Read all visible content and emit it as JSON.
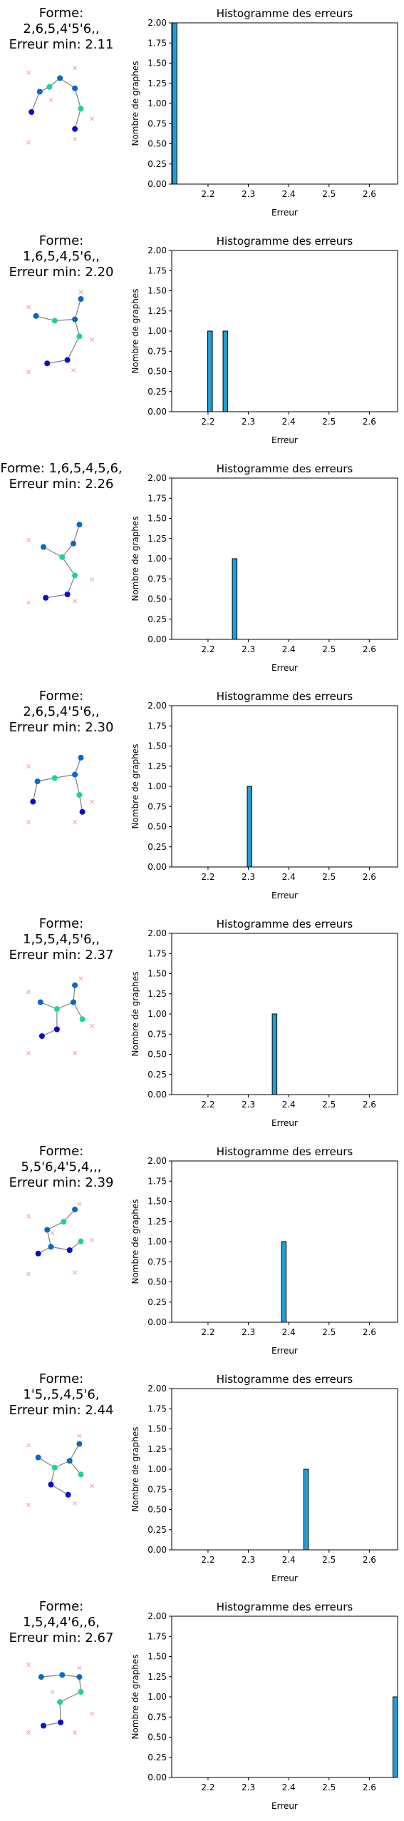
{
  "colors": {
    "bar": "#1f9fd6",
    "bar_edge": "#000000",
    "edge": "#808080",
    "cross": "#f4a0a0"
  },
  "chart_data": [
    {
      "type": "bar",
      "title": "Histogramme des erreurs",
      "xlabel": "Erreur",
      "ylabel": "Nombre de graphes",
      "xlim": [
        2.11,
        2.67
      ],
      "ylim": [
        0,
        2
      ],
      "xticks": [
        "2.2",
        "2.3",
        "2.4",
        "2.5",
        "2.6"
      ],
      "yticks": [
        "0.00",
        "0.25",
        "0.50",
        "0.75",
        "1.00",
        "1.25",
        "1.50",
        "1.75",
        "2.00"
      ],
      "bars": [
        {
          "x": 2.117,
          "value": 2
        }
      ],
      "forme": "Forme: 2,6,5,4'5'6,,",
      "erreur": "Erreur min: 2.11",
      "graph": {
        "nodes": [
          [
            0.42,
            0.1,
            "#0b67c8"
          ],
          [
            0.62,
            0.25,
            "#0b67c8"
          ],
          [
            0.15,
            0.3,
            "#0b67c8"
          ],
          [
            0.28,
            0.23,
            "#1fd1a0"
          ],
          [
            0.7,
            0.55,
            "#1fd1a0"
          ],
          [
            0.04,
            0.6,
            "#0b0bd8"
          ],
          [
            0.62,
            0.85,
            "#0b0bd8"
          ]
        ],
        "edges": [
          [
            0,
            1
          ],
          [
            0,
            3
          ],
          [
            3,
            2
          ],
          [
            2,
            5
          ],
          [
            1,
            4
          ],
          [
            4,
            6
          ]
        ],
        "crosses": [
          [
            0.62,
            -0.05
          ],
          [
            0.0,
            0.02
          ],
          [
            0.3,
            0.42
          ],
          [
            0.85,
            0.7
          ],
          [
            0.62,
            1.0
          ],
          [
            0.0,
            1.05
          ]
        ]
      }
    },
    {
      "type": "bar",
      "title": "Histogramme des erreurs",
      "xlabel": "Erreur",
      "ylabel": "Nombre de graphes",
      "xlim": [
        2.11,
        2.67
      ],
      "ylim": [
        0,
        2
      ],
      "xticks": [
        "2.2",
        "2.3",
        "2.4",
        "2.5",
        "2.6"
      ],
      "yticks": [
        "0.00",
        "0.25",
        "0.50",
        "0.75",
        "1.00",
        "1.25",
        "1.50",
        "1.75",
        "2.00"
      ],
      "bars": [
        {
          "x": 2.205,
          "value": 1
        },
        {
          "x": 2.243,
          "value": 1
        }
      ],
      "forme": "Forme: 1,6,5,4,5'6,,",
      "erreur": "Erreur min: 2.20",
      "graph": {
        "nodes": [
          [
            0.7,
            0.0,
            "#0b67c8"
          ],
          [
            0.1,
            0.25,
            "#0b67c8"
          ],
          [
            0.35,
            0.32,
            "#1fd1a0"
          ],
          [
            0.62,
            0.3,
            "#0b67c8"
          ],
          [
            0.68,
            0.55,
            "#1fd1a0"
          ],
          [
            0.52,
            0.9,
            "#0b0bd8"
          ],
          [
            0.25,
            0.95,
            "#0b0bd8"
          ]
        ],
        "edges": [
          [
            0,
            3
          ],
          [
            1,
            2
          ],
          [
            2,
            3
          ],
          [
            3,
            4
          ],
          [
            4,
            5
          ],
          [
            5,
            6
          ]
        ],
        "crosses": [
          [
            0.7,
            -0.1
          ],
          [
            0.0,
            0.12
          ],
          [
            0.85,
            0.6
          ],
          [
            0.6,
            1.05
          ],
          [
            0.0,
            1.08
          ]
        ]
      }
    },
    {
      "type": "bar",
      "title": "Histogramme des erreurs",
      "xlabel": "Erreur",
      "ylabel": "Nombre de graphes",
      "xlim": [
        2.11,
        2.67
      ],
      "ylim": [
        0,
        2
      ],
      "xticks": [
        "2.2",
        "2.3",
        "2.4",
        "2.5",
        "2.6"
      ],
      "yticks": [
        "0.00",
        "0.25",
        "0.50",
        "0.75",
        "1.00",
        "1.25",
        "1.50",
        "1.75",
        "2.00"
      ],
      "bars": [
        {
          "x": 2.266,
          "value": 1
        }
      ],
      "forme": "Forme: 1,6,5,4,5,6,",
      "erreur": "Erreur min: 2.26",
      "graph": {
        "nodes": [
          [
            0.68,
            -0.03,
            "#0b67c8"
          ],
          [
            0.6,
            0.25,
            "#0b67c8"
          ],
          [
            0.2,
            0.3,
            "#0b67c8"
          ],
          [
            0.45,
            0.45,
            "#1fd1a0"
          ],
          [
            0.62,
            0.72,
            "#1fd1a0"
          ],
          [
            0.52,
            1.0,
            "#0b0bd8"
          ],
          [
            0.23,
            1.05,
            "#0b0bd8"
          ]
        ],
        "edges": [
          [
            0,
            1
          ],
          [
            1,
            3
          ],
          [
            2,
            3
          ],
          [
            3,
            4
          ],
          [
            4,
            5
          ],
          [
            5,
            6
          ]
        ],
        "crosses": [
          [
            0.0,
            0.2
          ],
          [
            0.85,
            0.78
          ],
          [
            0.62,
            1.1
          ],
          [
            0.0,
            1.12
          ]
        ]
      }
    },
    {
      "type": "bar",
      "title": "Histogramme des erreurs",
      "xlabel": "Erreur",
      "ylabel": "Nombre de graphes",
      "xlim": [
        2.11,
        2.67
      ],
      "ylim": [
        0,
        2
      ],
      "xticks": [
        "2.2",
        "2.3",
        "2.4",
        "2.5",
        "2.6"
      ],
      "yticks": [
        "0.00",
        "0.25",
        "0.50",
        "0.75",
        "1.00",
        "1.25",
        "1.50",
        "1.75",
        "2.00"
      ],
      "bars": [
        {
          "x": 2.303,
          "value": 1
        }
      ],
      "forme": "Forme: 2,6,5,4'5'6,,",
      "erreur": "Erreur min: 2.30",
      "graph": {
        "nodes": [
          [
            0.7,
            0.05,
            "#0b67c8"
          ],
          [
            0.62,
            0.3,
            "#0b67c8"
          ],
          [
            0.35,
            0.35,
            "#1fd1a0"
          ],
          [
            0.12,
            0.4,
            "#0b67c8"
          ],
          [
            0.68,
            0.6,
            "#1fd1a0"
          ],
          [
            0.06,
            0.7,
            "#0b0bd8"
          ],
          [
            0.72,
            0.85,
            "#0b0bd8"
          ]
        ],
        "edges": [
          [
            0,
            1
          ],
          [
            1,
            2
          ],
          [
            2,
            3
          ],
          [
            3,
            5
          ],
          [
            1,
            4
          ],
          [
            4,
            6
          ]
        ],
        "crosses": [
          [
            0.0,
            0.18
          ],
          [
            0.85,
            0.7
          ],
          [
            0.62,
            1.0
          ],
          [
            0.0,
            1.0
          ]
        ]
      }
    },
    {
      "type": "bar",
      "title": "Histogramme des erreurs",
      "xlabel": "Erreur",
      "ylabel": "Nombre de graphes",
      "xlim": [
        2.11,
        2.67
      ],
      "ylim": [
        0,
        2
      ],
      "xticks": [
        "2.2",
        "2.3",
        "2.4",
        "2.5",
        "2.6"
      ],
      "yticks": [
        "0.00",
        "0.25",
        "0.50",
        "0.75",
        "1.00",
        "1.25",
        "1.50",
        "1.75",
        "2.00"
      ],
      "bars": [
        {
          "x": 2.365,
          "value": 1
        }
      ],
      "forme": "Forme: 1,5,5,4,5'6,,",
      "erreur": "Erreur min: 2.37",
      "graph": {
        "nodes": [
          [
            0.62,
            0.05,
            "#0b67c8"
          ],
          [
            0.16,
            0.3,
            "#0b67c8"
          ],
          [
            0.6,
            0.3,
            "#0b67c8"
          ],
          [
            0.38,
            0.4,
            "#1fd1a0"
          ],
          [
            0.72,
            0.55,
            "#1fd1a0"
          ],
          [
            0.38,
            0.7,
            "#0b0bd8"
          ],
          [
            0.18,
            0.8,
            "#0b0bd8"
          ]
        ],
        "edges": [
          [
            0,
            2
          ],
          [
            1,
            3
          ],
          [
            3,
            2
          ],
          [
            2,
            4
          ],
          [
            3,
            5
          ],
          [
            5,
            6
          ]
        ],
        "crosses": [
          [
            0.7,
            -0.05
          ],
          [
            0.0,
            0.15
          ],
          [
            0.85,
            0.65
          ],
          [
            0.62,
            1.05
          ],
          [
            0.0,
            1.05
          ]
        ]
      }
    },
    {
      "type": "bar",
      "title": "Histogramme des erreurs",
      "xlabel": "Erreur",
      "ylabel": "Nombre de graphes",
      "xlim": [
        2.11,
        2.67
      ],
      "ylim": [
        0,
        2
      ],
      "xticks": [
        "2.2",
        "2.3",
        "2.4",
        "2.5",
        "2.6"
      ],
      "yticks": [
        "0.00",
        "0.25",
        "0.50",
        "0.75",
        "1.00",
        "1.25",
        "1.50",
        "1.75",
        "2.00"
      ],
      "bars": [
        {
          "x": 2.388,
          "value": 1
        }
      ],
      "forme": "Forme: 5,5'6,4'5,4,,,",
      "erreur": "Erreur min: 2.39",
      "graph": {
        "nodes": [
          [
            0.62,
            0.0,
            "#0b67c8"
          ],
          [
            0.47,
            0.18,
            "#1fd1a0"
          ],
          [
            0.25,
            0.3,
            "#0b67c8"
          ],
          [
            0.3,
            0.55,
            "#0b67c8"
          ],
          [
            0.7,
            0.47,
            "#1fd1a0"
          ],
          [
            0.55,
            0.6,
            "#0b0bd8"
          ],
          [
            0.13,
            0.65,
            "#0b0bd8"
          ]
        ],
        "edges": [
          [
            0,
            1
          ],
          [
            1,
            2
          ],
          [
            2,
            3
          ],
          [
            3,
            6
          ],
          [
            3,
            5
          ],
          [
            5,
            4
          ]
        ],
        "crosses": [
          [
            0.68,
            -0.08
          ],
          [
            0.0,
            0.1
          ],
          [
            0.32,
            0.35
          ],
          [
            0.85,
            0.45
          ],
          [
            0.62,
            0.93
          ],
          [
            0.0,
            0.95
          ]
        ]
      }
    },
    {
      "type": "bar",
      "title": "Histogramme des erreurs",
      "xlabel": "Erreur",
      "ylabel": "Nombre de graphes",
      "xlim": [
        2.11,
        2.67
      ],
      "ylim": [
        0,
        2
      ],
      "xticks": [
        "2.2",
        "2.3",
        "2.4",
        "2.5",
        "2.6"
      ],
      "yticks": [
        "0.00",
        "0.25",
        "0.50",
        "0.75",
        "1.00",
        "1.25",
        "1.50",
        "1.75",
        "2.00"
      ],
      "bars": [
        {
          "x": 2.443,
          "value": 1
        }
      ],
      "forme": "Forme: 1'5,,5,4,5'6,",
      "erreur": "Erreur min: 2.44",
      "graph": {
        "nodes": [
          [
            0.68,
            0.1,
            "#0b67c8"
          ],
          [
            0.13,
            0.3,
            "#0b67c8"
          ],
          [
            0.55,
            0.35,
            "#0b67c8"
          ],
          [
            0.35,
            0.45,
            "#1fd1a0"
          ],
          [
            0.7,
            0.55,
            "#1fd1a0"
          ],
          [
            0.3,
            0.7,
            "#0b0bd8"
          ],
          [
            0.53,
            0.85,
            "#0b0bd8"
          ]
        ],
        "edges": [
          [
            0,
            2
          ],
          [
            1,
            3
          ],
          [
            3,
            2
          ],
          [
            2,
            4
          ],
          [
            3,
            5
          ],
          [
            5,
            6
          ]
        ],
        "crosses": [
          [
            0.68,
            -0.02
          ],
          [
            0.0,
            0.12
          ],
          [
            0.85,
            0.72
          ],
          [
            0.62,
            0.98
          ],
          [
            0.0,
            1.0
          ]
        ]
      }
    },
    {
      "type": "bar",
      "title": "Histogramme des erreurs",
      "xlabel": "Erreur",
      "ylabel": "Nombre de graphes",
      "xlim": [
        2.11,
        2.67
      ],
      "ylim": [
        0,
        2
      ],
      "xticks": [
        "2.2",
        "2.3",
        "2.4",
        "2.5",
        "2.6"
      ],
      "yticks": [
        "0.00",
        "0.25",
        "0.50",
        "0.75",
        "1.00",
        "1.25",
        "1.50",
        "1.75",
        "2.00"
      ],
      "bars": [
        {
          "x": 2.665,
          "value": 1
        }
      ],
      "forme": "Forme: 1,5,4,4'6,,6,",
      "erreur": "Erreur min: 2.67",
      "graph": {
        "nodes": [
          [
            0.45,
            0.15,
            "#0b67c8"
          ],
          [
            0.17,
            0.18,
            "#0b67c8"
          ],
          [
            0.68,
            0.18,
            "#0b67c8"
          ],
          [
            0.7,
            0.4,
            "#1fd1a0"
          ],
          [
            0.42,
            0.55,
            "#1fd1a0"
          ],
          [
            0.43,
            0.85,
            "#0b0bd8"
          ],
          [
            0.2,
            0.9,
            "#0b0bd8"
          ]
        ],
        "edges": [
          [
            1,
            0
          ],
          [
            0,
            2
          ],
          [
            2,
            3
          ],
          [
            3,
            4
          ],
          [
            4,
            5
          ],
          [
            5,
            6
          ]
        ],
        "crosses": [
          [
            0.68,
            0.05
          ],
          [
            0.0,
            0.0
          ],
          [
            0.32,
            0.4
          ],
          [
            0.85,
            0.72
          ],
          [
            0.62,
            1.0
          ],
          [
            0.0,
            1.0
          ]
        ]
      }
    }
  ]
}
